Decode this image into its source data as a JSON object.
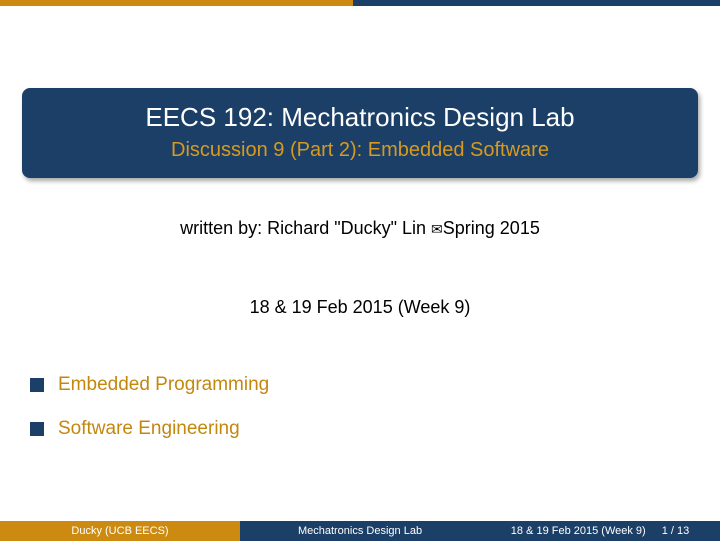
{
  "top_bar": {
    "left_width_pct": 49,
    "left_color": "#cc8b10",
    "right_color": "#1b3f66"
  },
  "title_block": {
    "main": "EECS 192: Mechatronics Design Lab",
    "sub": "Discussion 9 (Part 2): Embedded Software",
    "bg_color": "#1b3f66",
    "main_color": "#ffffff",
    "sub_color": "#d89a1e",
    "main_fontsize": 26,
    "sub_fontsize": 20,
    "border_radius": 8
  },
  "author_line": {
    "prefix": "written by: Richard \"Ducky\" Lin ",
    "suffix": "Spring 2015",
    "fontsize": 18,
    "color": "#000000"
  },
  "date_line": {
    "text": "18 & 19 Feb 2015 (Week 9)",
    "fontsize": 18,
    "color": "#000000"
  },
  "outline": {
    "bullet_color": "#1b3f66",
    "text_color": "#c4870e",
    "fontsize": 19,
    "items": [
      "Embedded Programming",
      "Software Engineering"
    ]
  },
  "footer": {
    "left": "Ducky (UCB EECS)",
    "mid": "Mechatronics Design Lab",
    "right_date": "18 & 19 Feb 2015 (Week 9)",
    "right_page": "1 / 13",
    "left_bg": "#cc8b10",
    "mid_bg": "#1b3f66",
    "right_bg": "#1b3f66",
    "fontsize": 11,
    "color": "#ffffff"
  }
}
